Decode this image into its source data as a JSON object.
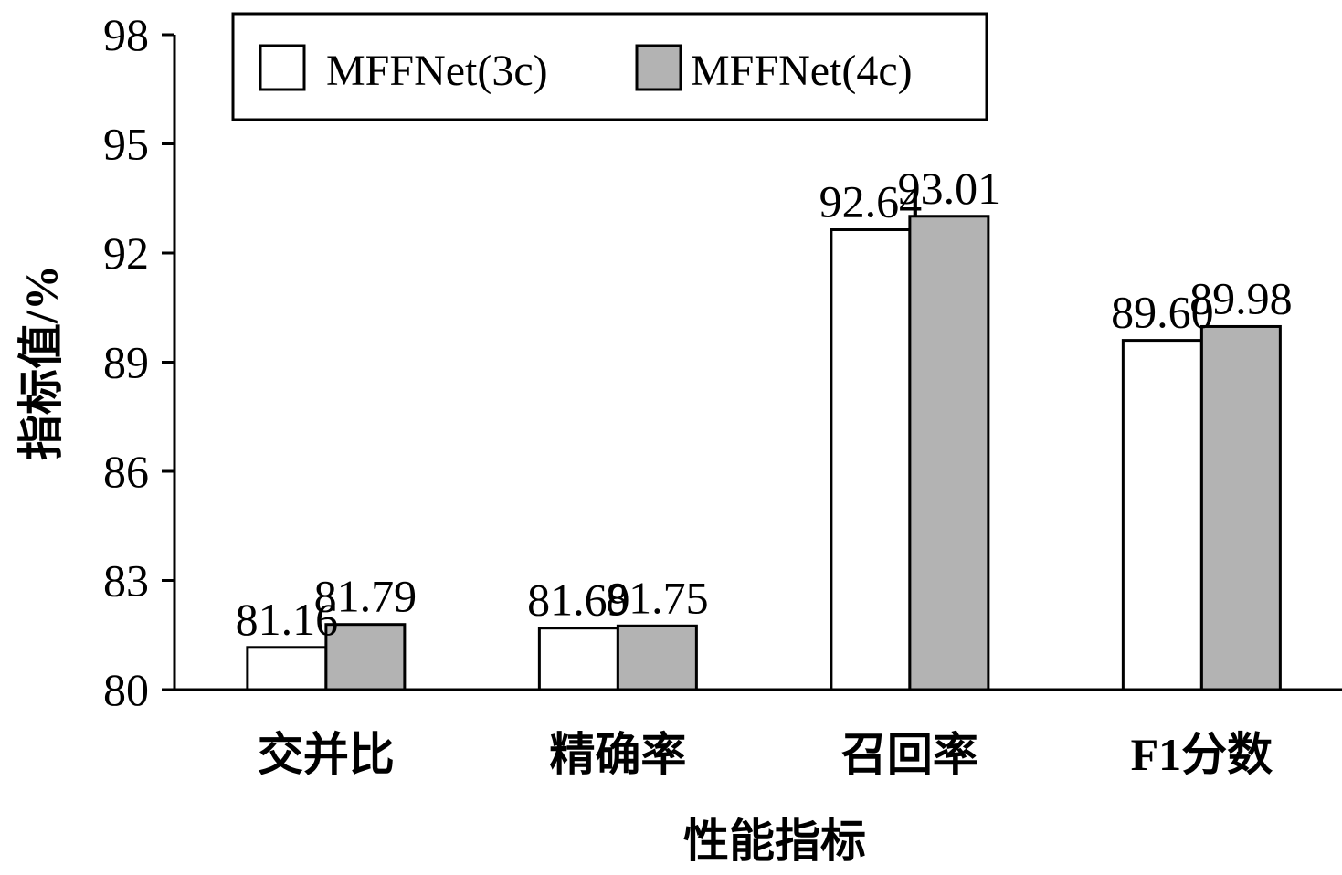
{
  "chart_data": {
    "type": "bar",
    "categories": [
      "交并比",
      "精确率",
      "召回率",
      "F1分数"
    ],
    "series": [
      {
        "name": "MFFNet(3c)",
        "values": [
          81.16,
          81.69,
          92.64,
          89.6
        ],
        "labels": [
          "81.16",
          "81.69",
          "92.64",
          "89.60"
        ],
        "color": "#ffffff"
      },
      {
        "name": "MFFNet(4c)",
        "values": [
          81.79,
          81.75,
          93.01,
          89.98
        ],
        "labels": [
          "81.79",
          "81.75",
          "93.01",
          "89.98"
        ],
        "color": "#b3b3b3"
      }
    ],
    "xlabel": "性能指标",
    "ylabel": "指标值/%",
    "ylim": [
      80,
      98
    ],
    "yticks": [
      80,
      83,
      86,
      89,
      92,
      95,
      98
    ],
    "grid": false,
    "legend": "top-inside"
  }
}
